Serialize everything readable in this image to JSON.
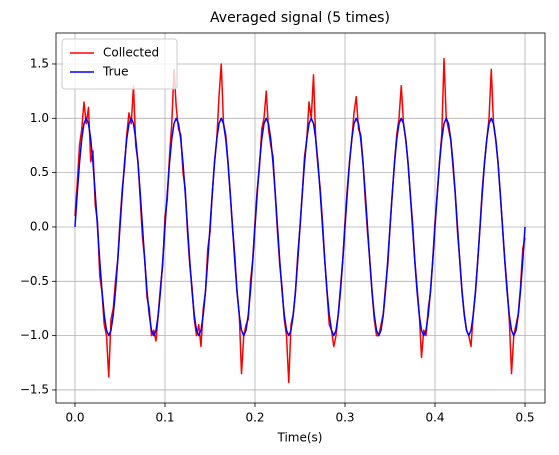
{
  "chart_data": {
    "type": "line",
    "title": "Averaged signal (5 times)",
    "xlabel": "Time(s)",
    "x": [
      0,
      0.0025,
      0.005,
      0.0075,
      0.01,
      0.0125,
      0.015,
      0.0175,
      0.02,
      0.0225,
      0.025,
      0.0275,
      0.03,
      0.0325,
      0.035,
      0.0375,
      0.04,
      0.0425,
      0.045,
      0.0475,
      0.05,
      0.0525,
      0.055,
      0.0575,
      0.06,
      0.0625,
      0.065,
      0.0675,
      0.07,
      0.0725,
      0.075,
      0.0775,
      0.08,
      0.0825,
      0.085,
      0.0875,
      0.09,
      0.0925,
      0.095,
      0.0975,
      0.1,
      0.1025,
      0.105,
      0.1075,
      0.11,
      0.1125,
      0.115,
      0.1175,
      0.12,
      0.1225,
      0.125,
      0.1275,
      0.13,
      0.1325,
      0.135,
      0.1375,
      0.14,
      0.1425,
      0.145,
      0.1475,
      0.15,
      0.1525,
      0.155,
      0.1575,
      0.16,
      0.1625,
      0.165,
      0.1675,
      0.17,
      0.1725,
      0.175,
      0.1775,
      0.18,
      0.1825,
      0.185,
      0.1875,
      0.19,
      0.1925,
      0.195,
      0.1975,
      0.2,
      0.2025,
      0.205,
      0.2075,
      0.21,
      0.2125,
      0.215,
      0.2175,
      0.22,
      0.2225,
      0.225,
      0.2275,
      0.23,
      0.2325,
      0.235,
      0.2375,
      0.24,
      0.2425,
      0.245,
      0.2475,
      0.25,
      0.2525,
      0.255,
      0.2575,
      0.26,
      0.2625,
      0.265,
      0.2675,
      0.27,
      0.2725,
      0.275,
      0.2775,
      0.28,
      0.2825,
      0.285,
      0.2875,
      0.29,
      0.2925,
      0.295,
      0.2975,
      0.3,
      0.3025,
      0.305,
      0.3075,
      0.31,
      0.3125,
      0.315,
      0.3175,
      0.32,
      0.3225,
      0.325,
      0.3275,
      0.33,
      0.3325,
      0.335,
      0.3375,
      0.34,
      0.3425,
      0.345,
      0.3475,
      0.35,
      0.3525,
      0.355,
      0.3575,
      0.36,
      0.3625,
      0.365,
      0.3675,
      0.37,
      0.3725,
      0.375,
      0.3775,
      0.38,
      0.3825,
      0.385,
      0.3875,
      0.39,
      0.3925,
      0.395,
      0.3975,
      0.4,
      0.4025,
      0.405,
      0.4075,
      0.41,
      0.4125,
      0.415,
      0.4175,
      0.42,
      0.4225,
      0.425,
      0.4275,
      0.43,
      0.4325,
      0.435,
      0.4375,
      0.44,
      0.4425,
      0.445,
      0.4475,
      0.45,
      0.4525,
      0.455,
      0.4575,
      0.46,
      0.4625,
      0.465,
      0.4675,
      0.47,
      0.4725,
      0.475,
      0.4775,
      0.48,
      0.4825,
      0.485,
      0.4875,
      0.49,
      0.4925,
      0.495,
      0.4975,
      0.5
    ],
    "series": [
      {
        "name": "Collected",
        "color": "#ff0000",
        "values": [
          0.1,
          0.4,
          0.75,
          0.9,
          1.15,
          0.95,
          1.1,
          0.6,
          0.7,
          0.2,
          0.05,
          -0.45,
          -0.6,
          -0.9,
          -1.0,
          -1.38,
          -0.85,
          -0.75,
          -0.5,
          -0.3,
          0.05,
          0.35,
          0.55,
          0.85,
          1.05,
          0.95,
          1.3,
          0.75,
          0.6,
          0.25,
          -0.1,
          -0.3,
          -0.65,
          -0.75,
          -1.0,
          -0.95,
          -1.05,
          -0.8,
          -0.55,
          -0.35,
          0.1,
          0.25,
          0.65,
          0.95,
          1.45,
          1.1,
          0.9,
          0.85,
          0.5,
          0.35,
          -0.05,
          -0.35,
          -0.55,
          -0.85,
          -1.0,
          -0.9,
          -1.1,
          -0.75,
          -0.6,
          -0.2,
          -0.05,
          0.3,
          0.6,
          0.8,
          1.2,
          1.5,
          0.95,
          0.85,
          0.6,
          0.3,
          0.0,
          -0.25,
          -0.6,
          -0.8,
          -1.35,
          -1.0,
          -0.9,
          -0.85,
          -0.5,
          -0.3,
          0.05,
          0.35,
          0.55,
          0.9,
          1.0,
          1.25,
          0.9,
          0.75,
          0.65,
          0.3,
          -0.05,
          -0.35,
          -0.55,
          -0.85,
          -1.0,
          -1.43,
          -0.9,
          -0.8,
          -0.6,
          -0.25,
          0.0,
          0.3,
          0.65,
          0.8,
          1.15,
          1.0,
          1.4,
          0.8,
          0.55,
          0.35,
          0.05,
          -0.3,
          -0.6,
          -0.9,
          -0.95,
          -1.1,
          -1.0,
          -0.8,
          -0.55,
          -0.3,
          0.05,
          0.35,
          0.6,
          0.8,
          1.05,
          1.2,
          0.9,
          0.85,
          0.6,
          0.25,
          -0.05,
          -0.3,
          -0.6,
          -0.85,
          -1.0,
          -1.0,
          -0.9,
          -0.8,
          -0.55,
          -0.35,
          0.0,
          0.3,
          0.6,
          0.85,
          1.0,
          1.3,
          0.95,
          0.8,
          0.6,
          0.3,
          0.05,
          -0.3,
          -0.55,
          -0.8,
          -1.2,
          -0.95,
          -1.0,
          -0.75,
          -0.6,
          -0.3,
          0.05,
          0.3,
          0.6,
          0.85,
          1.55,
          1.0,
          0.9,
          0.8,
          0.55,
          0.3,
          -0.05,
          -0.3,
          -0.6,
          -0.8,
          -0.95,
          -1.0,
          -1.1,
          -0.8,
          -0.6,
          -0.3,
          0.0,
          0.35,
          0.6,
          0.8,
          1.0,
          1.45,
          0.95,
          0.8,
          0.6,
          0.3,
          0.0,
          -0.3,
          -0.55,
          -0.85,
          -1.35,
          -1.0,
          -0.9,
          -0.8,
          -0.55,
          -0.2,
          -0.1
        ]
      },
      {
        "name": "True",
        "color": "#0000ff",
        "values": [
          0,
          0.309,
          0.588,
          0.809,
          0.951,
          1,
          0.951,
          0.809,
          0.588,
          0.309,
          0,
          -0.309,
          -0.588,
          -0.809,
          -0.951,
          -1,
          -0.951,
          -0.809,
          -0.588,
          -0.309,
          0,
          0.309,
          0.588,
          0.809,
          0.951,
          1,
          0.951,
          0.809,
          0.588,
          0.309,
          0,
          -0.309,
          -0.588,
          -0.809,
          -0.951,
          -1,
          -0.951,
          -0.809,
          -0.588,
          -0.309,
          0,
          0.309,
          0.588,
          0.809,
          0.951,
          1,
          0.951,
          0.809,
          0.588,
          0.309,
          0,
          -0.309,
          -0.588,
          -0.809,
          -0.951,
          -1,
          -0.951,
          -0.809,
          -0.588,
          -0.309,
          0,
          0.309,
          0.588,
          0.809,
          0.951,
          1,
          0.951,
          0.809,
          0.588,
          0.309,
          0,
          -0.309,
          -0.588,
          -0.809,
          -0.951,
          -1,
          -0.951,
          -0.809,
          -0.588,
          -0.309,
          0,
          0.309,
          0.588,
          0.809,
          0.951,
          1,
          0.951,
          0.809,
          0.588,
          0.309,
          0,
          -0.309,
          -0.588,
          -0.809,
          -0.951,
          -1,
          -0.951,
          -0.809,
          -0.588,
          -0.309,
          0,
          0.309,
          0.588,
          0.809,
          0.951,
          1,
          0.951,
          0.809,
          0.588,
          0.309,
          0,
          -0.309,
          -0.588,
          -0.809,
          -0.951,
          -1,
          -0.951,
          -0.809,
          -0.588,
          -0.309,
          0,
          0.309,
          0.588,
          0.809,
          0.951,
          1,
          0.951,
          0.809,
          0.588,
          0.309,
          0,
          -0.309,
          -0.588,
          -0.809,
          -0.951,
          -1,
          -0.951,
          -0.809,
          -0.588,
          -0.309,
          0,
          0.309,
          0.588,
          0.809,
          0.951,
          1,
          0.951,
          0.809,
          0.588,
          0.309,
          0,
          -0.309,
          -0.588,
          -0.809,
          -0.951,
          -1,
          -0.951,
          -0.809,
          -0.588,
          -0.309,
          0,
          0.309,
          0.588,
          0.809,
          0.951,
          1,
          0.951,
          0.809,
          0.588,
          0.309,
          0,
          -0.309,
          -0.588,
          -0.809,
          -0.951,
          -1,
          -0.951,
          -0.809,
          -0.588,
          -0.309,
          0,
          0.309,
          0.588,
          0.809,
          0.951,
          1,
          0.951,
          0.809,
          0.588,
          0.309,
          0,
          -0.309,
          -0.588,
          -0.809,
          -0.951,
          -1,
          -0.951,
          -0.809,
          -0.588,
          -0.309,
          0
        ]
      }
    ],
    "xlim": [
      -0.0211,
      0.5222
    ],
    "ylim": [
      -1.62,
      1.785
    ],
    "xticks": [
      {
        "value": 0,
        "label": "0.0"
      },
      0.1,
      0.2,
      0.3,
      0.4,
      0.5
    ],
    "yticks": [
      {
        "value": -1.5,
        "label": "−1.5"
      },
      {
        "value": -1,
        "label": "−1.0"
      },
      {
        "value": -0.5,
        "label": "−0.5"
      },
      {
        "value": 0,
        "label": "0.0"
      },
      0.5,
      {
        "value": 1,
        "label": "1.0"
      },
      1.5
    ],
    "grid": true,
    "legend": "upper left"
  }
}
